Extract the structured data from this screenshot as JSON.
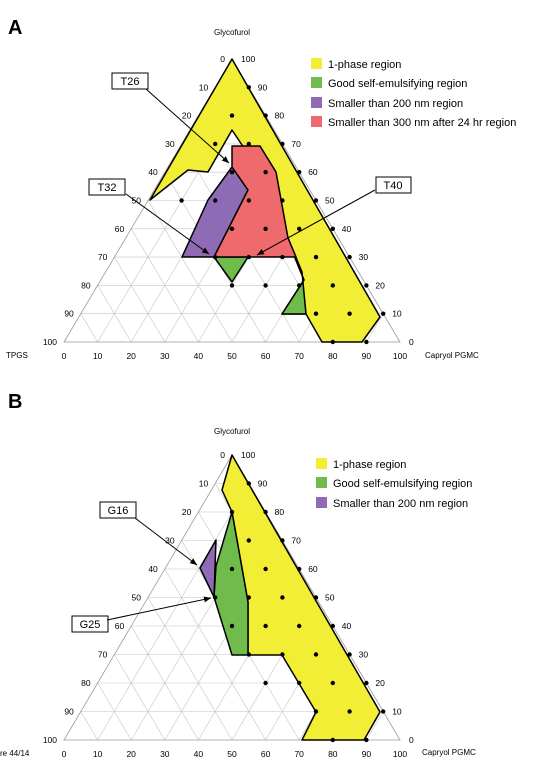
{
  "panels": [
    {
      "id": "A",
      "label": "A",
      "top_vertex_label": "Glycofurol",
      "left_vertex_label": "TPGS",
      "right_vertex_label": "Capryol PGMC",
      "left_ticks": [
        "0",
        "10",
        "20",
        "30",
        "40",
        "50",
        "60",
        "70",
        "80",
        "90",
        "100"
      ],
      "right_ticks": [
        "100",
        "90",
        "80",
        "70",
        "60",
        "50",
        "40",
        "30",
        "20",
        "10",
        "0"
      ],
      "bottom_ticks": [
        "0",
        "10",
        "20",
        "30",
        "40",
        "50",
        "60",
        "70",
        "80",
        "90",
        "100"
      ],
      "legend": [
        {
          "label": "1-phase region",
          "color": "#f2ee35"
        },
        {
          "label": "Good self-emulsifying region",
          "color": "#6fbb4b"
        },
        {
          "label": "Smaller than 200 nm region",
          "color": "#8e6bb4"
        },
        {
          "label": "Smaller than 300 nm after 24 hr region",
          "color": "#ee6a6d"
        }
      ],
      "callouts": [
        "T26",
        "T32",
        "T40"
      ]
    },
    {
      "id": "B",
      "label": "B",
      "top_vertex_label": "Glycofurol",
      "left_vertex_label": "",
      "right_vertex_label": "Capryol PGMC",
      "left_ticks": [
        "0",
        "10",
        "20",
        "30",
        "40",
        "50",
        "60",
        "70",
        "80",
        "90",
        "100"
      ],
      "right_ticks": [
        "100",
        "90",
        "80",
        "70",
        "60",
        "50",
        "40",
        "30",
        "20",
        "10",
        "0"
      ],
      "bottom_ticks": [
        "0",
        "10",
        "20",
        "30",
        "40",
        "50",
        "60",
        "70",
        "80",
        "90",
        "100"
      ],
      "legend": [
        {
          "label": "1-phase region",
          "color": "#f2ee35"
        },
        {
          "label": "Good self-emulsifying region",
          "color": "#6fbb4b"
        },
        {
          "label": "Smaller than 200 nm region",
          "color": "#8e6bb4"
        }
      ],
      "callouts": [
        "G16",
        "G25"
      ]
    }
  ],
  "page_footer": "re 44/14"
}
